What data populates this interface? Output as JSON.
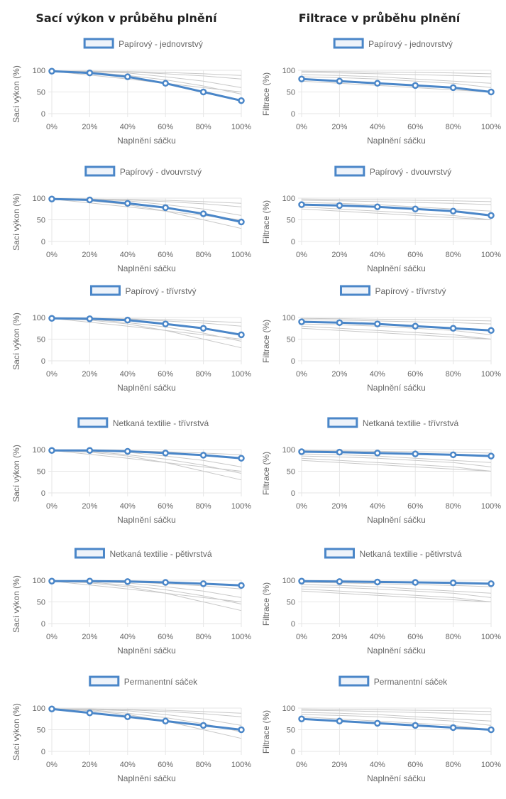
{
  "page": {
    "left_title": "Sací výkon v průběhu plnění",
    "right_title": "Filtrace v průběhu plnění"
  },
  "colors": {
    "accent": "#4a86c8",
    "accent_fill": "#eef3fa",
    "grid": "#e6e6e6",
    "reference": "#c8c8c8",
    "text": "#666666"
  },
  "chart_data": [
    {
      "type": "line",
      "column": "left",
      "row": 0,
      "legend": "Papírový - jednovrstvý",
      "xlabel": "Naplnění sáčku",
      "ylabel": "Sací výkon (%)",
      "categories": [
        "0%",
        "20%",
        "40%",
        "60%",
        "80%",
        "100%"
      ],
      "ylim": [
        0,
        100
      ],
      "yticks": [
        0,
        50,
        100
      ],
      "series": [
        {
          "name": "Papírový - jednovrstvý",
          "values": [
            98,
            94,
            85,
            70,
            50,
            30
          ]
        }
      ],
      "reference_lines": [
        [
          98,
          94,
          85,
          70,
          50,
          30
        ],
        [
          98,
          96,
          88,
          78,
          64,
          45
        ],
        [
          98,
          97,
          94,
          85,
          75,
          60
        ],
        [
          98,
          98,
          96,
          92,
          87,
          80
        ],
        [
          98,
          98,
          97,
          95,
          92,
          88
        ],
        [
          98,
          89,
          80,
          70,
          60,
          50
        ]
      ]
    },
    {
      "type": "line",
      "column": "right",
      "row": 0,
      "legend": "Papírový - jednovrstvý",
      "xlabel": "Naplnění sáčku",
      "ylabel": "Filtrace (%)",
      "categories": [
        "0%",
        "20%",
        "40%",
        "60%",
        "80%",
        "100%"
      ],
      "ylim": [
        0,
        100
      ],
      "yticks": [
        0,
        50,
        100
      ],
      "series": [
        {
          "name": "Papírový - jednovrstvý",
          "values": [
            80,
            75,
            70,
            65,
            60,
            50
          ]
        }
      ],
      "reference_lines": [
        [
          80,
          75,
          70,
          65,
          60,
          50
        ],
        [
          85,
          83,
          80,
          75,
          70,
          60
        ],
        [
          90,
          88,
          85,
          80,
          75,
          70
        ],
        [
          95,
          94,
          92,
          90,
          88,
          85
        ],
        [
          98,
          97,
          96,
          95,
          94,
          92
        ],
        [
          75,
          70,
          65,
          60,
          55,
          50
        ]
      ]
    },
    {
      "type": "line",
      "column": "left",
      "row": 1,
      "legend": "Papírový - dvouvrstvý",
      "xlabel": "Naplnění sáčku",
      "ylabel": "Sací výkon (%)",
      "categories": [
        "0%",
        "20%",
        "40%",
        "60%",
        "80%",
        "100%"
      ],
      "ylim": [
        0,
        100
      ],
      "yticks": [
        0,
        50,
        100
      ],
      "series": [
        {
          "name": "Papírový - dvouvrstvý",
          "values": [
            98,
            96,
            88,
            78,
            64,
            45
          ]
        }
      ],
      "reference_lines": [
        [
          98,
          94,
          85,
          70,
          50,
          30
        ],
        [
          98,
          96,
          88,
          78,
          64,
          45
        ],
        [
          98,
          97,
          94,
          85,
          75,
          60
        ],
        [
          98,
          98,
          96,
          92,
          87,
          80
        ],
        [
          98,
          98,
          97,
          95,
          92,
          88
        ],
        [
          98,
          89,
          80,
          70,
          60,
          50
        ]
      ]
    },
    {
      "type": "line",
      "column": "right",
      "row": 1,
      "legend": "Papírový - dvouvrstvý",
      "xlabel": "Naplnění sáčku",
      "ylabel": "Filtrace (%)",
      "categories": [
        "0%",
        "20%",
        "40%",
        "60%",
        "80%",
        "100%"
      ],
      "ylim": [
        0,
        100
      ],
      "yticks": [
        0,
        50,
        100
      ],
      "series": [
        {
          "name": "Papírový - dvouvrstvý",
          "values": [
            85,
            83,
            80,
            75,
            70,
            60
          ]
        }
      ],
      "reference_lines": [
        [
          80,
          75,
          70,
          65,
          60,
          50
        ],
        [
          85,
          83,
          80,
          75,
          70,
          60
        ],
        [
          90,
          88,
          85,
          80,
          75,
          70
        ],
        [
          95,
          94,
          92,
          90,
          88,
          85
        ],
        [
          98,
          97,
          96,
          95,
          94,
          92
        ],
        [
          75,
          70,
          65,
          60,
          55,
          50
        ]
      ]
    },
    {
      "type": "line",
      "column": "left",
      "row": 2,
      "legend": "Papírový - třívrstvý",
      "xlabel": "Naplnění sáčku",
      "ylabel": "Sací výkon (%)",
      "categories": [
        "0%",
        "20%",
        "40%",
        "60%",
        "80%",
        "100%"
      ],
      "ylim": [
        0,
        100
      ],
      "yticks": [
        0,
        50,
        100
      ],
      "series": [
        {
          "name": "Papírový - třívrstvý",
          "values": [
            98,
            97,
            94,
            85,
            75,
            60
          ]
        }
      ],
      "reference_lines": [
        [
          98,
          94,
          85,
          70,
          50,
          30
        ],
        [
          98,
          96,
          88,
          78,
          64,
          45
        ],
        [
          98,
          97,
          94,
          85,
          75,
          60
        ],
        [
          98,
          98,
          96,
          92,
          87,
          80
        ],
        [
          98,
          98,
          97,
          95,
          92,
          88
        ],
        [
          98,
          89,
          80,
          70,
          60,
          50
        ]
      ]
    },
    {
      "type": "line",
      "column": "right",
      "row": 2,
      "legend": "Papírový - třívrstvý",
      "xlabel": "Naplnění sáčku",
      "ylabel": "Filtrace (%)",
      "categories": [
        "0%",
        "20%",
        "40%",
        "60%",
        "80%",
        "100%"
      ],
      "ylim": [
        0,
        100
      ],
      "yticks": [
        0,
        50,
        100
      ],
      "series": [
        {
          "name": "Papírový - třívrstvý",
          "values": [
            90,
            88,
            85,
            80,
            75,
            70
          ]
        }
      ],
      "reference_lines": [
        [
          80,
          75,
          70,
          65,
          60,
          50
        ],
        [
          85,
          83,
          80,
          75,
          70,
          60
        ],
        [
          90,
          88,
          85,
          80,
          75,
          70
        ],
        [
          95,
          94,
          92,
          90,
          88,
          85
        ],
        [
          98,
          97,
          96,
          95,
          94,
          92
        ],
        [
          75,
          70,
          65,
          60,
          55,
          50
        ]
      ]
    },
    {
      "type": "line",
      "column": "left",
      "row": 3,
      "legend": "Netkaná textilie - třívrstvá",
      "xlabel": "Naplnění sáčku",
      "ylabel": "Sací výkon (%)",
      "categories": [
        "0%",
        "20%",
        "40%",
        "60%",
        "80%",
        "100%"
      ],
      "ylim": [
        0,
        100
      ],
      "yticks": [
        0,
        50,
        100
      ],
      "series": [
        {
          "name": "Netkaná textilie - třívrstvá",
          "values": [
            98,
            98,
            96,
            92,
            87,
            80
          ]
        }
      ],
      "reference_lines": [
        [
          98,
          94,
          85,
          70,
          50,
          30
        ],
        [
          98,
          96,
          88,
          78,
          64,
          45
        ],
        [
          98,
          97,
          94,
          85,
          75,
          60
        ],
        [
          98,
          98,
          96,
          92,
          87,
          80
        ],
        [
          98,
          98,
          97,
          95,
          92,
          88
        ],
        [
          98,
          89,
          80,
          70,
          60,
          50
        ]
      ]
    },
    {
      "type": "line",
      "column": "right",
      "row": 3,
      "legend": "Netkaná textilie - třívrstvá",
      "xlabel": "Naplnění sáčku",
      "ylabel": "Filtrace (%)",
      "categories": [
        "0%",
        "20%",
        "40%",
        "60%",
        "80%",
        "100%"
      ],
      "ylim": [
        0,
        100
      ],
      "yticks": [
        0,
        50,
        100
      ],
      "series": [
        {
          "name": "Netkaná textilie - třívrstvá",
          "values": [
            95,
            94,
            92,
            90,
            88,
            85
          ]
        }
      ],
      "reference_lines": [
        [
          80,
          75,
          70,
          65,
          60,
          50
        ],
        [
          85,
          83,
          80,
          75,
          70,
          60
        ],
        [
          90,
          88,
          85,
          80,
          75,
          70
        ],
        [
          95,
          94,
          92,
          90,
          88,
          85
        ],
        [
          98,
          97,
          96,
          95,
          94,
          92
        ],
        [
          75,
          70,
          65,
          60,
          55,
          50
        ]
      ]
    },
    {
      "type": "line",
      "column": "left",
      "row": 4,
      "legend": "Netkaná textilie - pětivrstvá",
      "xlabel": "Naplnění sáčku",
      "ylabel": "Sací výkon (%)",
      "categories": [
        "0%",
        "20%",
        "40%",
        "60%",
        "80%",
        "100%"
      ],
      "ylim": [
        0,
        100
      ],
      "yticks": [
        0,
        50,
        100
      ],
      "series": [
        {
          "name": "Netkaná textilie - pětivrstvá",
          "values": [
            98,
            98,
            97,
            95,
            92,
            88
          ]
        }
      ],
      "reference_lines": [
        [
          98,
          94,
          85,
          70,
          50,
          30
        ],
        [
          98,
          96,
          88,
          78,
          64,
          45
        ],
        [
          98,
          97,
          94,
          85,
          75,
          60
        ],
        [
          98,
          98,
          96,
          92,
          87,
          80
        ],
        [
          98,
          98,
          97,
          95,
          92,
          88
        ],
        [
          98,
          89,
          80,
          70,
          60,
          50
        ]
      ]
    },
    {
      "type": "line",
      "column": "right",
      "row": 4,
      "legend": "Netkaná textilie - pětivrstvá",
      "xlabel": "Naplnění sáčku",
      "ylabel": "Filtrace (%)",
      "categories": [
        "0%",
        "20%",
        "40%",
        "60%",
        "80%",
        "100%"
      ],
      "ylim": [
        0,
        100
      ],
      "yticks": [
        0,
        50,
        100
      ],
      "series": [
        {
          "name": "Netkaná textilie - pětivrstvá",
          "values": [
            98,
            97,
            96,
            95,
            94,
            92
          ]
        }
      ],
      "reference_lines": [
        [
          80,
          75,
          70,
          65,
          60,
          50
        ],
        [
          85,
          83,
          80,
          75,
          70,
          60
        ],
        [
          90,
          88,
          85,
          80,
          75,
          70
        ],
        [
          95,
          94,
          92,
          90,
          88,
          85
        ],
        [
          98,
          97,
          96,
          95,
          94,
          92
        ],
        [
          75,
          70,
          65,
          60,
          55,
          50
        ]
      ]
    },
    {
      "type": "line",
      "column": "left",
      "row": 5,
      "legend": "Permanentní sáček",
      "xlabel": "Naplnění sáčku",
      "ylabel": "Sací výkon (%)",
      "categories": [
        "0%",
        "20%",
        "40%",
        "60%",
        "80%",
        "100%"
      ],
      "ylim": [
        0,
        100
      ],
      "yticks": [
        0,
        50,
        100
      ],
      "series": [
        {
          "name": "Permanentní sáček",
          "values": [
            98,
            89,
            80,
            70,
            60,
            50
          ]
        }
      ],
      "reference_lines": [
        [
          98,
          94,
          85,
          70,
          50,
          30
        ],
        [
          98,
          96,
          88,
          78,
          64,
          45
        ],
        [
          98,
          97,
          94,
          85,
          75,
          60
        ],
        [
          98,
          98,
          96,
          92,
          87,
          80
        ],
        [
          98,
          98,
          97,
          95,
          92,
          88
        ],
        [
          98,
          89,
          80,
          70,
          60,
          50
        ]
      ]
    },
    {
      "type": "line",
      "column": "right",
      "row": 5,
      "legend": "Permanentní sáček",
      "xlabel": "Naplnění sáčku",
      "ylabel": "Filtrace (%)",
      "categories": [
        "0%",
        "20%",
        "40%",
        "60%",
        "80%",
        "100%"
      ],
      "ylim": [
        0,
        100
      ],
      "yticks": [
        0,
        50,
        100
      ],
      "series": [
        {
          "name": "Permanentní sáček",
          "values": [
            75,
            70,
            65,
            60,
            55,
            50
          ]
        }
      ],
      "reference_lines": [
        [
          80,
          75,
          70,
          65,
          60,
          50
        ],
        [
          85,
          83,
          80,
          75,
          70,
          60
        ],
        [
          90,
          88,
          85,
          80,
          75,
          70
        ],
        [
          95,
          94,
          92,
          90,
          88,
          85
        ],
        [
          98,
          97,
          96,
          95,
          94,
          92
        ],
        [
          75,
          70,
          65,
          60,
          55,
          50
        ]
      ]
    }
  ]
}
